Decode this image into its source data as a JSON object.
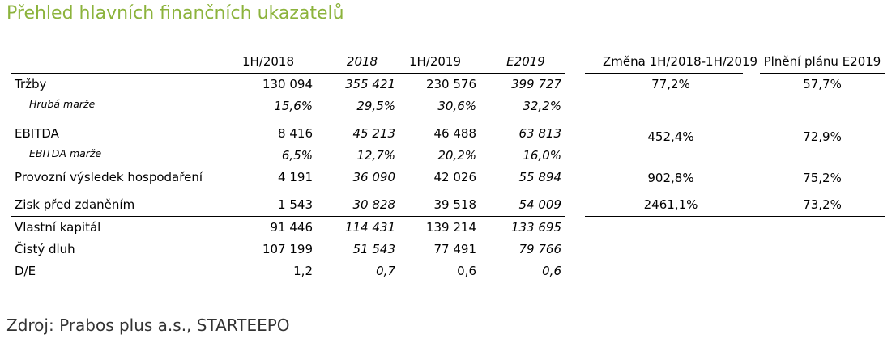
{
  "title": "Přehled hlavních finančních ukazatelů",
  "columns": [
    "1H/2018",
    "2018",
    "1H/2019",
    "E2019"
  ],
  "change_columns": [
    "Změna 1H/2018-1H/2019",
    "Plnění plánu E2019"
  ],
  "rows": [
    {
      "label": "Tržby",
      "values": [
        "130 094",
        "355 421",
        "230 576",
        "399 727"
      ],
      "change": "77,2%",
      "plan": "57,7%"
    },
    {
      "label": "Hrubá marže",
      "values": [
        "15,6%",
        "29,5%",
        "30,6%",
        "32,2%"
      ],
      "change": "",
      "plan": ""
    },
    {
      "label": "EBITDA",
      "values": [
        "8 416",
        "45 213",
        "46 488",
        "63 813"
      ],
      "change": "452,4%",
      "plan": "72,9%"
    },
    {
      "label": "EBITDA marže",
      "values": [
        "6,5%",
        "12,7%",
        "20,2%",
        "16,0%"
      ],
      "change": "",
      "plan": ""
    },
    {
      "label": "Provozní výsledek hospodaření",
      "values": [
        "4 191",
        "36 090",
        "42 026",
        "55 894"
      ],
      "change": "902,8%",
      "plan": "75,2%"
    },
    {
      "label": "Zisk před zdaněním",
      "values": [
        "1 543",
        "30 828",
        "39 518",
        "54 009"
      ],
      "change": "2461,1%",
      "plan": "73,2%"
    },
    {
      "label": "Vlastní kapitál",
      "values": [
        "91 446",
        "114 431",
        "139 214",
        "133 695"
      ],
      "change": "",
      "plan": ""
    },
    {
      "label": "Čistý dluh",
      "values": [
        "107 199",
        "51 543",
        "77 491",
        "79 766"
      ],
      "change": "",
      "plan": ""
    },
    {
      "label": "D/E",
      "values": [
        "1,2",
        "0,7",
        "0,6",
        "0,6"
      ],
      "change": "",
      "plan": ""
    }
  ],
  "source": "Zdroj: Prabos plus a.s., STARTEEPO"
}
